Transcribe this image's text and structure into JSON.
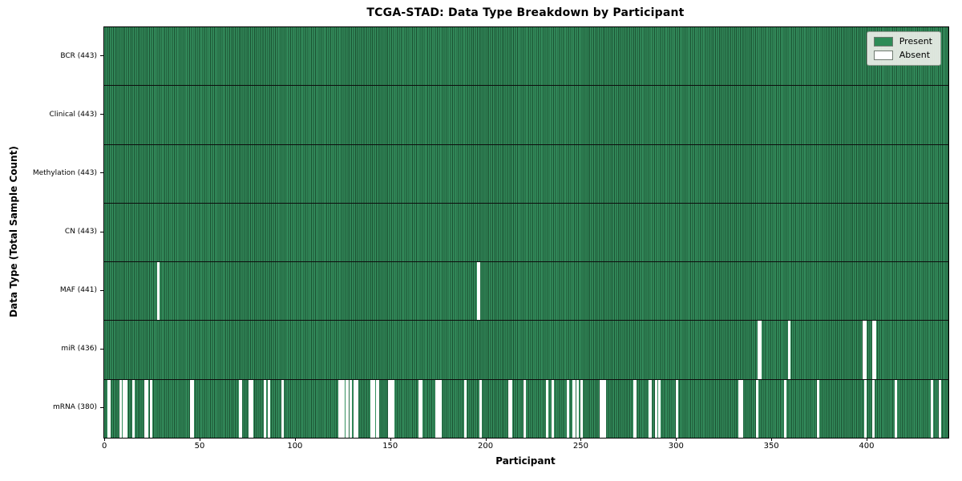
{
  "title": "TCGA-STAD: Data Type Breakdown by Participant",
  "xlabel": "Participant",
  "ylabel": "Data Type (Total Sample Count)",
  "legend": [
    {
      "label": "Present",
      "color": "#2e8b57"
    },
    {
      "label": "Absent",
      "color": "#ffffff"
    }
  ],
  "colors": {
    "present": "#2e8b57",
    "present_light": "#35915f",
    "bar_edge": "#1a4f30",
    "absent": "#ffffff",
    "grid_line": "#0d0d0d"
  },
  "chart_data": {
    "type": "heatmap",
    "title": "TCGA-STAD: Data Type Breakdown by Participant",
    "xlabel": "Participant",
    "ylabel": "Data Type (Total Sample Count)",
    "x_range": [
      0,
      443
    ],
    "x_ticks": [
      0,
      50,
      100,
      150,
      200,
      250,
      300,
      350,
      400
    ],
    "n_participants": 443,
    "legend_position": "upper right",
    "grid": "row separators only",
    "rows": [
      {
        "name": "BCR",
        "label": "BCR (443)",
        "present_count": 443,
        "absent_participants": []
      },
      {
        "name": "Clinical",
        "label": "Clinical (443)",
        "present_count": 443,
        "absent_participants": []
      },
      {
        "name": "Methylation",
        "label": "Methylation (443)",
        "present_count": 443,
        "absent_participants": []
      },
      {
        "name": "CN",
        "label": "CN (443)",
        "present_count": 443,
        "absent_participants": []
      },
      {
        "name": "MAF",
        "label": "MAF (441)",
        "present_count": 441,
        "absent_participants": [
          28,
          196
        ]
      },
      {
        "name": "miR",
        "label": "miR (436)",
        "present_count": 436,
        "absent_participants": [
          343,
          344,
          359,
          398,
          399,
          403,
          404
        ]
      },
      {
        "name": "mRNA",
        "label": "mRNA (380)",
        "present_count": 380,
        "absent_participants": [
          2,
          8,
          10,
          11,
          15,
          21,
          22,
          24,
          45,
          46,
          71,
          76,
          77,
          84,
          86,
          93,
          123,
          124,
          125,
          127,
          129,
          131,
          132,
          140,
          141,
          143,
          149,
          150,
          151,
          165,
          166,
          174,
          175,
          176,
          189,
          197,
          212,
          213,
          220,
          232,
          235,
          243,
          246,
          248,
          250,
          260,
          261,
          262,
          278,
          286,
          289,
          291,
          300,
          333,
          334,
          342,
          357,
          374,
          399,
          403,
          415,
          434,
          438
        ]
      }
    ]
  }
}
